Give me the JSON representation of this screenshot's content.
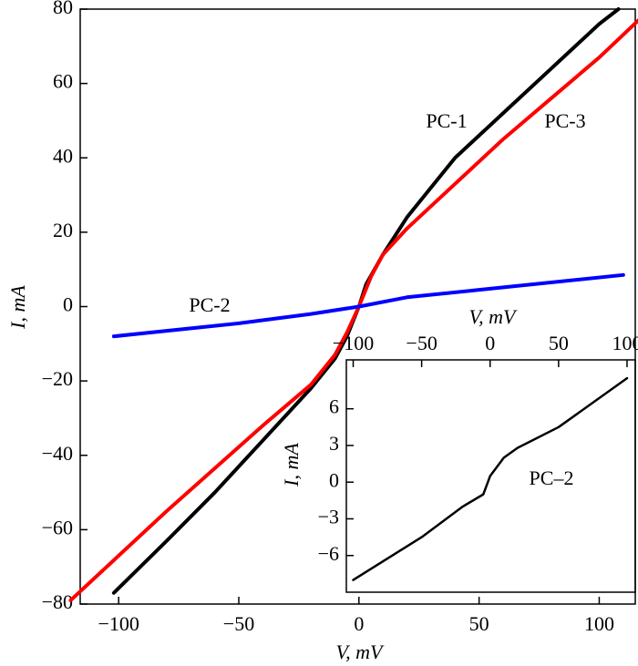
{
  "chart_data": [
    {
      "type": "line",
      "xlabel": "V, mV",
      "ylabel": "I, mA",
      "xlim": [
        -116,
        115
      ],
      "xticks": [
        {
          "value": -100,
          "label": "−100"
        },
        {
          "value": -50,
          "label": "−50"
        },
        0,
        50,
        100
      ],
      "ylim": [
        -80,
        80
      ],
      "yticks": [
        {
          "value": -80,
          "label": "−80"
        },
        {
          "value": -60,
          "label": "−60"
        },
        {
          "value": -40,
          "label": "−40"
        },
        {
          "value": -20,
          "label": "−20"
        },
        0,
        20,
        40,
        60,
        80
      ],
      "series": [
        {
          "name": "PC-1",
          "color": "#000000",
          "x": [
            -102,
            -80,
            -60,
            -40,
            -20,
            -10,
            -5,
            0,
            3,
            10,
            20,
            40,
            60,
            80,
            100,
            108
          ],
          "values": [
            -77,
            -63,
            -50,
            -36,
            -22,
            -14,
            -8,
            0,
            6,
            14,
            24,
            40,
            52,
            64,
            76,
            80
          ]
        },
        {
          "name": "PC-3",
          "color": "#ff0000",
          "x": [
            -120,
            -80,
            -40,
            -20,
            -10,
            -5,
            0,
            5,
            10,
            20,
            40,
            60,
            80,
            100,
            118
          ],
          "values": [
            -79,
            -55,
            -32,
            -21,
            -13,
            -7,
            0,
            8,
            14,
            21,
            33,
            45,
            56,
            67,
            78
          ]
        },
        {
          "name": "PC-2",
          "color": "#0000ff",
          "x": [
            -102,
            -50,
            -20,
            0,
            20,
            50,
            110
          ],
          "values": [
            -8,
            -4.5,
            -2,
            0,
            2.5,
            4.5,
            8.5
          ]
        }
      ]
    },
    {
      "type": "line",
      "xlabel": "V, mV",
      "ylabel": "I, mA",
      "xlim": [
        -105,
        106
      ],
      "xticks": [
        {
          "value": -100,
          "label": "−100"
        },
        {
          "value": -50,
          "label": "−50"
        },
        0,
        50,
        100
      ],
      "ylim": [
        -9,
        10
      ],
      "yticks": [
        {
          "value": -6,
          "label": "−6"
        },
        {
          "value": -3,
          "label": "−3"
        },
        0,
        3,
        6
      ],
      "series": [
        {
          "name": "PC–2",
          "color": "#000000",
          "x": [
            -100,
            -50,
            -20,
            -5,
            0,
            10,
            20,
            50,
            100
          ],
          "values": [
            -8,
            -4.5,
            -2,
            -1,
            0.5,
            2,
            2.8,
            4.5,
            8.5
          ]
        }
      ]
    }
  ]
}
